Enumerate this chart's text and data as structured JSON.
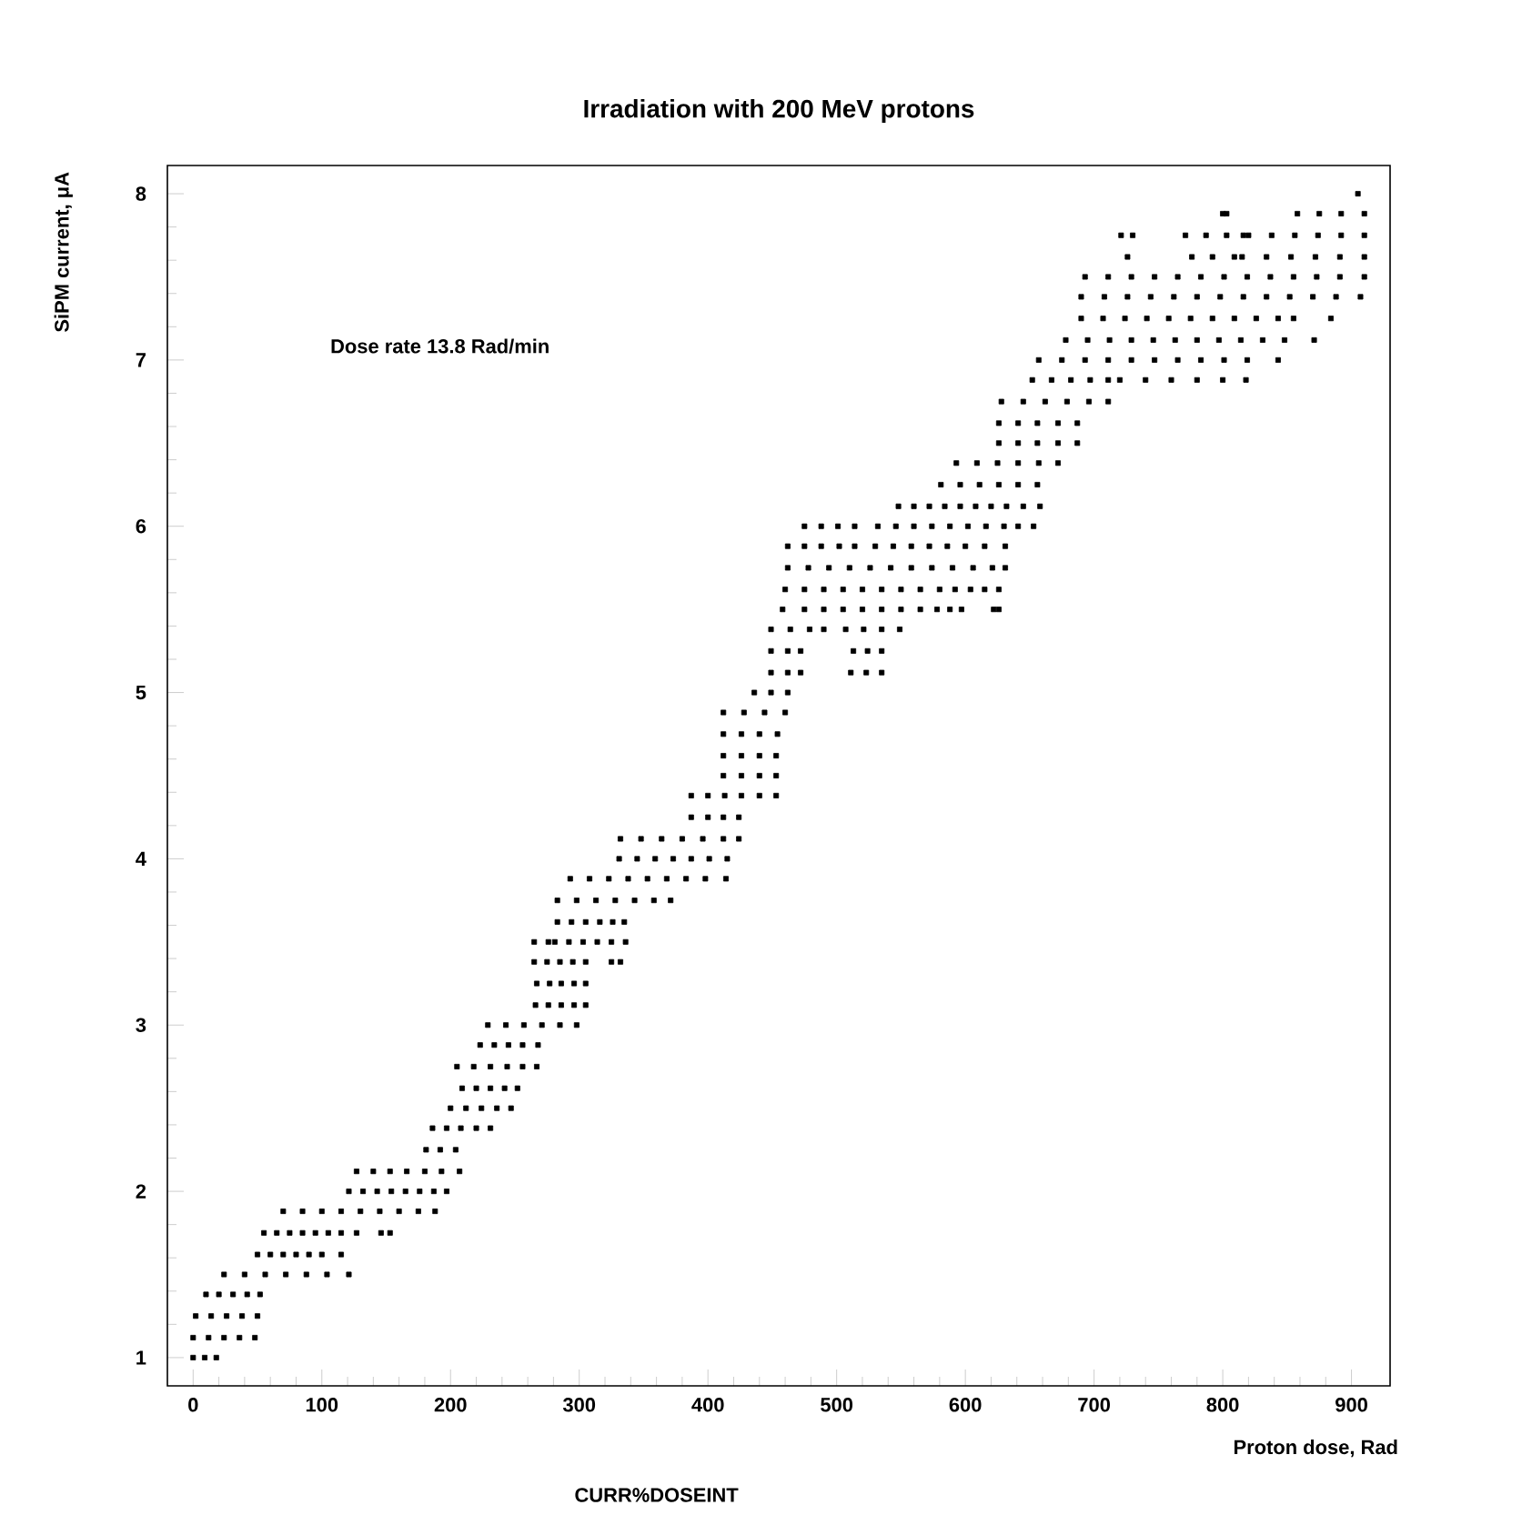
{
  "chart_data": {
    "type": "scatter",
    "title": "Irradiation with 200 MeV protons",
    "xlabel": "Proton dose, Rad",
    "ylabel": "SiPM current, μA",
    "annotations": [
      "Dose rate 13.8 Rad/min",
      "CURR%DOSEINT"
    ],
    "xlim": [
      -20,
      930
    ],
    "ylim": [
      0.83,
      8.17
    ],
    "xticks": [
      0,
      100,
      200,
      300,
      400,
      500,
      600,
      700,
      800,
      900
    ],
    "yticks": [
      1,
      2,
      3,
      4,
      5,
      6,
      7,
      8
    ],
    "marker": "square",
    "series": [
      {
        "color": "#000000",
        "x": [
          0,
          9,
          18
        ],
        "values": [
          1.0,
          1.0,
          1.0
        ]
      },
      {
        "color": "#000000",
        "x": [
          0,
          12,
          24,
          36,
          48
        ],
        "values": [
          1.12,
          1.12,
          1.12,
          1.12,
          1.12
        ]
      },
      {
        "color": "#000000",
        "x": [
          2,
          14,
          26,
          38,
          50
        ],
        "values": [
          1.25,
          1.25,
          1.25,
          1.25,
          1.25
        ]
      },
      {
        "color": "#000000",
        "x": [
          10,
          20,
          31,
          42,
          52
        ],
        "values": [
          1.38,
          1.38,
          1.38,
          1.38,
          1.38
        ]
      },
      {
        "color": "#000000",
        "x": [
          24,
          40,
          56,
          72,
          88,
          104,
          121
        ],
        "values": [
          1.5,
          1.5,
          1.5,
          1.5,
          1.5,
          1.5,
          1.5
        ]
      },
      {
        "color": "#000000",
        "x": [
          50,
          60,
          70,
          80,
          90,
          100,
          115
        ],
        "values": [
          1.62,
          1.62,
          1.62,
          1.62,
          1.62,
          1.62,
          1.62
        ]
      },
      {
        "color": "#000000",
        "x": [
          55,
          65,
          75,
          85,
          95,
          105,
          115,
          127,
          146,
          153
        ],
        "values": [
          1.75,
          1.75,
          1.75,
          1.75,
          1.75,
          1.75,
          1.75,
          1.75,
          1.75,
          1.75
        ]
      },
      {
        "color": "#000000",
        "x": [
          70,
          85,
          100,
          115,
          130,
          145,
          160,
          175,
          188
        ],
        "values": [
          1.88,
          1.88,
          1.88,
          1.88,
          1.88,
          1.88,
          1.88,
          1.88,
          1.88
        ]
      },
      {
        "color": "#000000",
        "x": [
          121,
          132,
          143,
          154,
          165,
          176,
          187,
          197
        ],
        "values": [
          2.0,
          2.0,
          2.0,
          2.0,
          2.0,
          2.0,
          2.0,
          2.0
        ]
      },
      {
        "color": "#000000",
        "x": [
          127,
          140,
          153,
          166,
          180,
          193,
          207
        ],
        "values": [
          2.12,
          2.12,
          2.12,
          2.12,
          2.12,
          2.12,
          2.12
        ]
      },
      {
        "color": "#000000",
        "x": [
          181,
          192,
          204
        ],
        "values": [
          2.25,
          2.25,
          2.25
        ]
      },
      {
        "color": "#000000",
        "x": [
          186,
          197,
          208,
          220,
          231
        ],
        "values": [
          2.38,
          2.38,
          2.38,
          2.38,
          2.38
        ]
      },
      {
        "color": "#000000",
        "x": [
          200,
          212,
          224,
          236,
          247
        ],
        "values": [
          2.5,
          2.5,
          2.5,
          2.5,
          2.5
        ]
      },
      {
        "color": "#000000",
        "x": [
          209,
          220,
          231,
          242,
          252
        ],
        "values": [
          2.62,
          2.62,
          2.62,
          2.62,
          2.62
        ]
      },
      {
        "color": "#000000",
        "x": [
          205,
          218,
          231,
          244,
          256,
          267
        ],
        "values": [
          2.75,
          2.75,
          2.75,
          2.75,
          2.75,
          2.75
        ]
      },
      {
        "color": "#000000",
        "x": [
          223,
          234,
          245,
          256,
          268
        ],
        "values": [
          2.88,
          2.88,
          2.88,
          2.88,
          2.88
        ]
      },
      {
        "color": "#000000",
        "x": [
          229,
          243,
          257,
          271,
          285,
          298
        ],
        "values": [
          3.0,
          3.0,
          3.0,
          3.0,
          3.0,
          3.0
        ]
      },
      {
        "color": "#000000",
        "x": [
          266,
          276,
          286,
          296,
          305
        ],
        "values": [
          3.12,
          3.12,
          3.12,
          3.12,
          3.12
        ]
      },
      {
        "color": "#000000",
        "x": [
          267,
          277,
          286,
          296,
          305
        ],
        "values": [
          3.25,
          3.25,
          3.25,
          3.25,
          3.25
        ]
      },
      {
        "color": "#000000",
        "x": [
          265,
          275,
          285,
          295,
          305,
          325,
          332
        ],
        "values": [
          3.38,
          3.38,
          3.38,
          3.38,
          3.38,
          3.38,
          3.38
        ]
      },
      {
        "color": "#000000",
        "x": [
          265,
          276,
          281,
          292,
          303,
          314,
          325,
          336
        ],
        "values": [
          3.5,
          3.5,
          3.5,
          3.5,
          3.5,
          3.5,
          3.5,
          3.5
        ]
      },
      {
        "color": "#000000",
        "x": [
          283,
          294,
          305,
          316,
          326,
          335
        ],
        "values": [
          3.62,
          3.62,
          3.62,
          3.62,
          3.62,
          3.62
        ]
      },
      {
        "color": "#000000",
        "x": [
          283,
          298,
          313,
          328,
          343,
          358,
          371
        ],
        "values": [
          3.75,
          3.75,
          3.75,
          3.75,
          3.75,
          3.75,
          3.75
        ]
      },
      {
        "color": "#000000",
        "x": [
          293,
          308,
          323,
          338,
          353,
          368,
          383,
          398,
          414
        ],
        "values": [
          3.88,
          3.88,
          3.88,
          3.88,
          3.88,
          3.88,
          3.88,
          3.88,
          3.88
        ]
      },
      {
        "color": "#000000",
        "x": [
          331,
          345,
          359,
          373,
          387,
          401,
          415
        ],
        "values": [
          4.0,
          4.0,
          4.0,
          4.0,
          4.0,
          4.0,
          4.0
        ]
      },
      {
        "color": "#000000",
        "x": [
          332,
          348,
          364,
          380,
          396,
          412,
          424
        ],
        "values": [
          4.12,
          4.12,
          4.12,
          4.12,
          4.12,
          4.12,
          4.12
        ]
      },
      {
        "color": "#000000",
        "x": [
          387,
          400,
          412,
          424
        ],
        "values": [
          4.25,
          4.25,
          4.25,
          4.25
        ]
      },
      {
        "color": "#000000",
        "x": [
          387,
          400,
          413,
          426,
          440,
          453
        ],
        "values": [
          4.38,
          4.38,
          4.38,
          4.38,
          4.38,
          4.38
        ]
      },
      {
        "color": "#000000",
        "x": [
          412,
          426,
          440,
          453
        ],
        "values": [
          4.5,
          4.5,
          4.5,
          4.5
        ]
      },
      {
        "color": "#000000",
        "x": [
          412,
          426,
          440,
          453
        ],
        "values": [
          4.62,
          4.62,
          4.62,
          4.62
        ]
      },
      {
        "color": "#000000",
        "x": [
          412,
          426,
          440,
          454
        ],
        "values": [
          4.75,
          4.75,
          4.75,
          4.75
        ]
      },
      {
        "color": "#000000",
        "x": [
          412,
          428,
          444,
          460
        ],
        "values": [
          4.88,
          4.88,
          4.88,
          4.88
        ]
      },
      {
        "color": "#000000",
        "x": [
          436,
          449,
          462
        ],
        "values": [
          5.0,
          5.0,
          5.0
        ]
      },
      {
        "color": "#000000",
        "x": [
          449,
          462,
          472,
          511,
          523,
          535
        ],
        "values": [
          5.12,
          5.12,
          5.12,
          5.12,
          5.12,
          5.12
        ]
      },
      {
        "color": "#000000",
        "x": [
          449,
          462,
          472,
          513,
          524,
          535
        ],
        "values": [
          5.25,
          5.25,
          5.25,
          5.25,
          5.25,
          5.25
        ]
      },
      {
        "color": "#000000",
        "x": [
          449,
          464,
          479,
          490,
          507,
          521,
          535,
          549
        ],
        "values": [
          5.38,
          5.38,
          5.38,
          5.38,
          5.38,
          5.38,
          5.38,
          5.38
        ]
      },
      {
        "color": "#000000",
        "x": [
          458,
          475,
          490,
          505,
          520,
          535,
          550,
          565,
          578,
          588,
          597,
          622,
          626
        ],
        "values": [
          5.5,
          5.5,
          5.5,
          5.5,
          5.5,
          5.5,
          5.5,
          5.5,
          5.5,
          5.5,
          5.5,
          5.5,
          5.5
        ]
      },
      {
        "color": "#000000",
        "x": [
          460,
          475,
          490,
          505,
          520,
          535,
          550,
          565,
          580,
          592,
          604,
          615,
          626
        ],
        "values": [
          5.62,
          5.62,
          5.62,
          5.62,
          5.62,
          5.62,
          5.62,
          5.62,
          5.62,
          5.62,
          5.62,
          5.62,
          5.62
        ]
      },
      {
        "color": "#000000",
        "x": [
          462,
          478,
          494,
          510,
          526,
          542,
          558,
          574,
          590,
          606,
          621,
          631
        ],
        "values": [
          5.75,
          5.75,
          5.75,
          5.75,
          5.75,
          5.75,
          5.75,
          5.75,
          5.75,
          5.75,
          5.75,
          5.75
        ]
      },
      {
        "color": "#000000",
        "x": [
          462,
          475,
          488,
          502,
          514,
          530,
          544,
          558,
          572,
          586,
          600,
          615,
          631
        ],
        "values": [
          5.88,
          5.88,
          5.88,
          5.88,
          5.88,
          5.88,
          5.88,
          5.88,
          5.88,
          5.88,
          5.88,
          5.88,
          5.88
        ]
      },
      {
        "color": "#000000",
        "x": [
          475,
          488,
          501,
          514,
          532,
          546,
          560,
          574,
          588,
          602,
          616,
          630,
          641,
          653
        ],
        "values": [
          6.0,
          6.0,
          6.0,
          6.0,
          6.0,
          6.0,
          6.0,
          6.0,
          6.0,
          6.0,
          6.0,
          6.0,
          6.0,
          6.0
        ]
      },
      {
        "color": "#000000",
        "x": [
          548,
          560,
          572,
          584,
          596,
          608,
          620,
          632,
          645,
          658
        ],
        "values": [
          6.12,
          6.12,
          6.12,
          6.12,
          6.12,
          6.12,
          6.12,
          6.12,
          6.12,
          6.12
        ]
      },
      {
        "color": "#000000",
        "x": [
          581,
          596,
          611,
          626,
          641,
          656
        ],
        "values": [
          6.25,
          6.25,
          6.25,
          6.25,
          6.25,
          6.25
        ]
      },
      {
        "color": "#000000",
        "x": [
          593,
          609,
          625,
          641,
          657,
          672
        ],
        "values": [
          6.38,
          6.38,
          6.38,
          6.38,
          6.38,
          6.38
        ]
      },
      {
        "color": "#000000",
        "x": [
          626,
          641,
          656,
          672,
          687
        ],
        "values": [
          6.5,
          6.5,
          6.5,
          6.5,
          6.5
        ]
      },
      {
        "color": "#000000",
        "x": [
          626,
          641,
          656,
          672,
          687
        ],
        "values": [
          6.62,
          6.62,
          6.62,
          6.62,
          6.62
        ]
      },
      {
        "color": "#000000",
        "x": [
          628,
          645,
          662,
          679,
          696,
          711
        ],
        "values": [
          6.75,
          6.75,
          6.75,
          6.75,
          6.75,
          6.75
        ]
      },
      {
        "color": "#000000",
        "x": [
          652,
          667,
          682,
          697,
          711,
          720,
          740,
          760,
          780,
          800,
          818
        ],
        "values": [
          6.88,
          6.88,
          6.88,
          6.88,
          6.88,
          6.88,
          6.88,
          6.88,
          6.88,
          6.88,
          6.88
        ]
      },
      {
        "color": "#000000",
        "x": [
          657,
          675,
          693,
          711,
          729,
          747,
          765,
          783,
          801,
          819,
          843
        ],
        "values": [
          7.0,
          7.0,
          7.0,
          7.0,
          7.0,
          7.0,
          7.0,
          7.0,
          7.0,
          7.0,
          7.0
        ]
      },
      {
        "color": "#000000",
        "x": [
          678,
          695,
          712,
          729,
          746,
          763,
          780,
          797,
          814,
          831,
          848,
          871
        ],
        "values": [
          7.12,
          7.12,
          7.12,
          7.12,
          7.12,
          7.12,
          7.12,
          7.12,
          7.12,
          7.12,
          7.12,
          7.12
        ]
      },
      {
        "color": "#000000",
        "x": [
          690,
          707,
          724,
          741,
          758,
          775,
          792,
          809,
          826,
          843,
          855,
          884
        ],
        "values": [
          7.25,
          7.25,
          7.25,
          7.25,
          7.25,
          7.25,
          7.25,
          7.25,
          7.25,
          7.25,
          7.25,
          7.25
        ]
      },
      {
        "color": "#000000",
        "x": [
          690,
          708,
          726,
          744,
          762,
          780,
          798,
          816,
          834,
          852,
          870,
          888,
          907
        ],
        "values": [
          7.38,
          7.38,
          7.38,
          7.38,
          7.38,
          7.38,
          7.38,
          7.38,
          7.38,
          7.38,
          7.38,
          7.38,
          7.38
        ]
      },
      {
        "color": "#000000",
        "x": [
          693,
          711,
          729,
          747,
          765,
          783,
          801,
          819,
          837,
          855,
          873,
          891,
          910
        ],
        "values": [
          7.5,
          7.5,
          7.5,
          7.5,
          7.5,
          7.5,
          7.5,
          7.5,
          7.5,
          7.5,
          7.5,
          7.5,
          7.5
        ]
      },
      {
        "color": "#000000",
        "x": [
          726,
          776,
          792,
          809,
          815,
          834,
          853,
          872,
          891,
          910
        ],
        "values": [
          7.62,
          7.62,
          7.62,
          7.62,
          7.62,
          7.62,
          7.62,
          7.62,
          7.62,
          7.62
        ]
      },
      {
        "color": "#000000",
        "x": [
          721,
          730,
          771,
          787,
          803,
          816,
          820,
          838,
          856,
          874,
          892,
          910
        ],
        "values": [
          7.75,
          7.75,
          7.75,
          7.75,
          7.75,
          7.75,
          7.75,
          7.75,
          7.75,
          7.75,
          7.75,
          7.75
        ]
      },
      {
        "color": "#000000",
        "x": [
          800,
          803,
          858,
          875,
          892,
          910
        ],
        "values": [
          7.88,
          7.88,
          7.88,
          7.88,
          7.88,
          7.88
        ]
      },
      {
        "color": "#000000",
        "x": [
          905
        ],
        "values": [
          8.0
        ]
      }
    ]
  }
}
